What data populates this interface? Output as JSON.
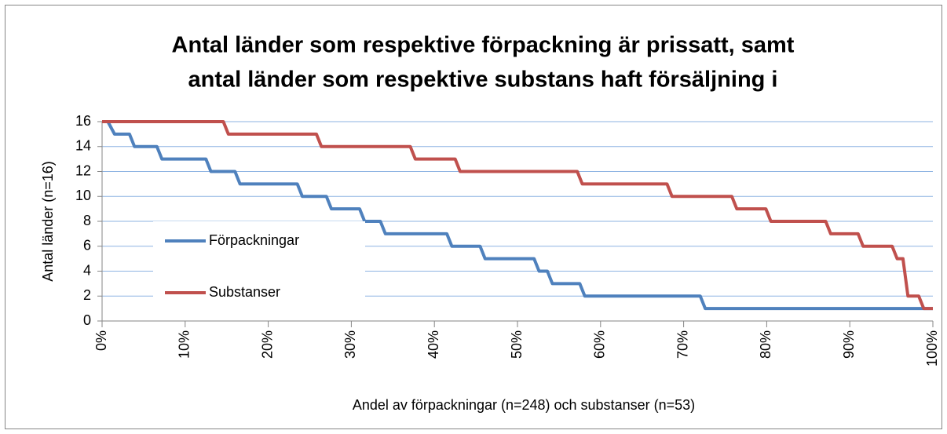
{
  "chart_data": {
    "type": "line",
    "title": [
      "Antal länder som respektive förpackning är prissatt, samt",
      "antal länder som respektive substans haft försäljning i"
    ],
    "y_label": "Antal länder (n=16)",
    "x_label": "Andel av förpackningar (n=248) och substanser (n=53)",
    "xlim": [
      0,
      100
    ],
    "xticks": [
      {
        "value": 0,
        "label": "0%"
      },
      {
        "value": 10,
        "label": "10%"
      },
      {
        "value": 20,
        "label": "20%"
      },
      {
        "value": 30,
        "label": "30%"
      },
      {
        "value": 40,
        "label": "40%"
      },
      {
        "value": 50,
        "label": "50%"
      },
      {
        "value": 60,
        "label": "60%"
      },
      {
        "value": 70,
        "label": "70%"
      },
      {
        "value": 80,
        "label": "80%"
      },
      {
        "value": 90,
        "label": "90%"
      },
      {
        "value": 100,
        "label": "100%"
      }
    ],
    "ylim": [
      0,
      16
    ],
    "yticks": [
      0,
      2,
      4,
      6,
      8,
      10,
      12,
      14,
      16
    ],
    "grid": true,
    "legend": "center-left",
    "series": [
      {
        "name": "Förpackningar",
        "color": "#4f81bd",
        "x": [
          0.7,
          1.5,
          3.3,
          3.9,
          6.6,
          7.2,
          12.5,
          13.1,
          16.0,
          16.6,
          23.5,
          24.1,
          27.0,
          27.6,
          31.0,
          31.6,
          33.5,
          34.1,
          41.5,
          42.1,
          45.5,
          46.1,
          52.0,
          52.6,
          53.6,
          54.2,
          57.5,
          58.1,
          72.0,
          72.6,
          100
        ],
        "values": [
          16,
          15,
          15,
          14,
          14,
          13,
          13,
          12,
          12,
          11,
          11,
          10,
          10,
          9,
          9,
          8,
          8,
          7,
          7,
          6,
          6,
          5,
          5,
          4,
          4,
          3,
          3,
          2,
          2,
          1,
          1
        ]
      },
      {
        "name": "Substanser",
        "color": "#c0504d",
        "x": [
          0,
          14.6,
          15.2,
          25.8,
          26.4,
          37.1,
          37.7,
          42.5,
          43.1,
          57.2,
          57.8,
          68.0,
          68.6,
          75.8,
          76.4,
          79.9,
          80.5,
          87.1,
          87.7,
          91.0,
          91.6,
          95.1,
          95.7,
          96.4,
          97.0,
          98.3,
          98.9,
          100
        ],
        "values": [
          16,
          16,
          15,
          15,
          14,
          14,
          13,
          13,
          12,
          12,
          11,
          11,
          10,
          10,
          9,
          9,
          8,
          8,
          7,
          7,
          6,
          6,
          5,
          5,
          2,
          2,
          1,
          1
        ]
      }
    ]
  }
}
